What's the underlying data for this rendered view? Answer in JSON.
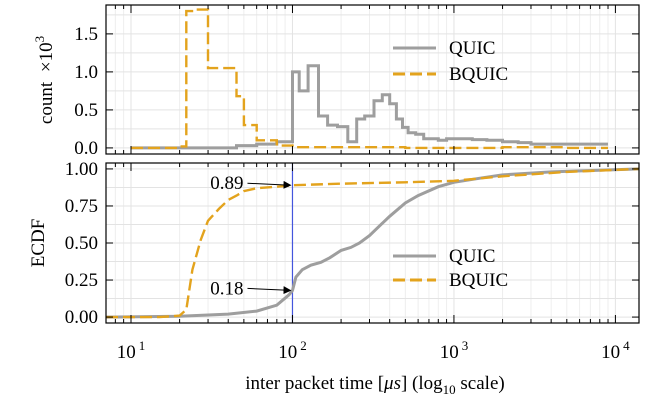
{
  "chart_data": [
    {
      "type": "line",
      "step": true,
      "ylabel_main": "count",
      "ylabel_suffix": "×10",
      "ylabel_exp": "3",
      "xscale": "log10",
      "xlim": [
        7,
        14000
      ],
      "ylim": [
        -0.08,
        1.88
      ],
      "yticks": [
        "0.0",
        "0.5",
        "1.0",
        "1.5"
      ],
      "ytick_values": [
        0.0,
        0.5,
        1.0,
        1.5
      ],
      "grid": true,
      "legend": "center-right",
      "series": [
        {
          "name": "QUIC",
          "color": "#9e9e9e",
          "style": "solid",
          "x": [
            10,
            45,
            60,
            80,
            100,
            110,
            125,
            145,
            165,
            190,
            220,
            250,
            280,
            320,
            360,
            400,
            440,
            480,
            520,
            580,
            650,
            720,
            800,
            900,
            1000,
            1300,
            1600,
            2000,
            2500,
            3000,
            9000
          ],
          "y": [
            0.0,
            0.03,
            0.05,
            0.08,
            1.0,
            0.75,
            1.08,
            0.42,
            0.3,
            0.28,
            0.08,
            0.38,
            0.42,
            0.62,
            0.7,
            0.58,
            0.38,
            0.27,
            0.2,
            0.18,
            0.12,
            0.12,
            0.1,
            0.12,
            0.12,
            0.11,
            0.1,
            0.08,
            0.07,
            0.05,
            0.05
          ]
        },
        {
          "name": "BQUIC",
          "color": "#e3a31d",
          "style": "dashed",
          "x": [
            10,
            20,
            22,
            25,
            30,
            45,
            50,
            60,
            80,
            100,
            200,
            500,
            1000,
            2000,
            5000,
            9000
          ],
          "y": [
            0.0,
            0.02,
            1.8,
            1.82,
            1.05,
            0.68,
            0.3,
            0.1,
            0.03,
            0.01,
            0.01,
            0.0,
            0.0,
            0.01,
            0.0,
            0.0
          ]
        }
      ]
    },
    {
      "type": "line",
      "ylabel": "ECDF",
      "xlabel_main": "inter packet time [",
      "xlabel_unit": "μs",
      "xlabel_mid": "] (log",
      "xlabel_sub": "10",
      "xlabel_end": " scale)",
      "xscale": "log10",
      "xlim": [
        7,
        14000
      ],
      "ylim": [
        -0.04,
        1.04
      ],
      "yticks": [
        "0.00",
        "0.25",
        "0.50",
        "0.75",
        "1.00"
      ],
      "ytick_values": [
        0.0,
        0.25,
        0.5,
        0.75,
        1.0
      ],
      "xticks": [
        10,
        100,
        1000,
        10000
      ],
      "xtick_base": "10",
      "xtick_exps": [
        "1",
        "2",
        "3",
        "4"
      ],
      "grid": true,
      "legend": "center-right",
      "vline_x": 100,
      "vline_color": "#4455dd",
      "annotations": [
        {
          "text": "0.89",
          "x": 100,
          "y": 0.89
        },
        {
          "text": "0.18",
          "x": 100,
          "y": 0.18
        }
      ],
      "series": [
        {
          "name": "QUIC",
          "color": "#9e9e9e",
          "style": "solid",
          "x": [
            7,
            20,
            40,
            60,
            80,
            95,
            100,
            105,
            115,
            130,
            150,
            170,
            200,
            230,
            260,
            300,
            350,
            400,
            500,
            600,
            800,
            1000,
            1500,
            2000,
            4000,
            14000
          ],
          "y": [
            0.0,
            0.005,
            0.02,
            0.04,
            0.08,
            0.15,
            0.18,
            0.27,
            0.32,
            0.35,
            0.37,
            0.4,
            0.45,
            0.47,
            0.5,
            0.55,
            0.62,
            0.68,
            0.77,
            0.82,
            0.88,
            0.91,
            0.94,
            0.96,
            0.98,
            1.0
          ]
        },
        {
          "name": "BQUIC",
          "color": "#e3a31d",
          "style": "dashed",
          "x": [
            7,
            15,
            20,
            22,
            24,
            27,
            30,
            35,
            40,
            45,
            50,
            60,
            80,
            100,
            200,
            500,
            1000,
            2000,
            5000,
            14000
          ],
          "y": [
            0.0,
            0.0,
            0.01,
            0.05,
            0.32,
            0.52,
            0.65,
            0.73,
            0.79,
            0.82,
            0.85,
            0.87,
            0.88,
            0.89,
            0.9,
            0.91,
            0.92,
            0.95,
            0.98,
            1.0
          ]
        }
      ]
    }
  ]
}
